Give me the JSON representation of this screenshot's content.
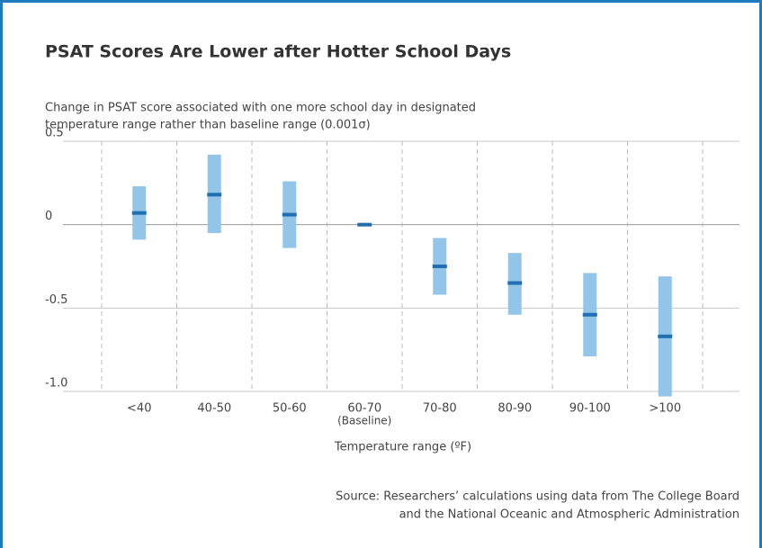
{
  "chart_data": {
    "type": "errorbar",
    "title": "PSAT Scores Are Lower after Hotter School Days",
    "y_label": [
      "Change in PSAT score associated with one more school day in designated",
      "temperature range rather than baseline range (0.001σ)"
    ],
    "x_label": "Temperature range (ºF)",
    "categories": [
      "<40",
      "40-50",
      "50-60",
      "60-70",
      "70-80",
      "80-90",
      "90-100",
      ">100"
    ],
    "baseline_label": "(Baseline)",
    "series": [
      {
        "color": "#1f6fb2",
        "interval_color": "#93c5e8",
        "values": [
          0.07,
          0.18,
          0.06,
          0,
          -0.25,
          -0.35,
          -0.54,
          -0.67
        ],
        "lower": [
          -0.09,
          -0.05,
          -0.14,
          null,
          -0.42,
          -0.54,
          -0.79,
          -1.03
        ],
        "upper": [
          0.23,
          0.42,
          0.26,
          null,
          -0.08,
          -0.17,
          -0.29,
          -0.31
        ]
      }
    ],
    "ylim": [
      -1.0,
      0.5
    ],
    "yticks": [
      0.5,
      0,
      -0.5,
      {
        "value": -1.0,
        "label": "-1.0"
      }
    ],
    "grid": true,
    "source": [
      "Source: Researchers’ calculations using data from The College Board",
      "and the National Oceanic and Atmospheric Administration"
    ]
  }
}
